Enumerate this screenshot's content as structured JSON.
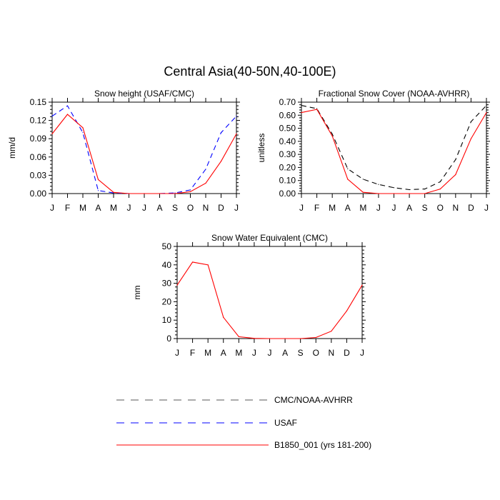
{
  "figure": {
    "title": "Central Asia(40-50N,40-100E)"
  },
  "legend": [
    {
      "name": "CMC/NOAA-AVHRR",
      "color": "#000000",
      "dash": "dashed"
    },
    {
      "name": "USAF",
      "color": "#0000ff",
      "dash": "dashed"
    },
    {
      "name": "B1850_001 (yrs 181-200)",
      "color": "#ff0000",
      "dash": "solid"
    }
  ],
  "chart_data": [
    {
      "type": "line",
      "title": "Snow height (USAF/CMC)",
      "ylabel": "mm/d",
      "xlabel": "",
      "categories": [
        "J",
        "F",
        "M",
        "A",
        "M",
        "J",
        "J",
        "A",
        "S",
        "O",
        "N",
        "D",
        "J"
      ],
      "ylim": [
        0,
        0.15
      ],
      "yticks": [
        "0.00",
        "0.03",
        "0.06",
        "0.09",
        "0.12",
        "0.15"
      ],
      "series": [
        {
          "name": "USAF",
          "color": "#0000ff",
          "dash": "dashed",
          "values": [
            0.127,
            0.144,
            0.1,
            0.005,
            0.001,
            0.0,
            0.0,
            0.0,
            0.001,
            0.006,
            0.04,
            0.1,
            0.127
          ]
        },
        {
          "name": "B1850_001 (yrs 181-200)",
          "color": "#ff0000",
          "dash": "solid",
          "values": [
            0.098,
            0.13,
            0.108,
            0.023,
            0.002,
            0.0,
            0.0,
            0.0,
            0.0,
            0.003,
            0.017,
            0.053,
            0.098
          ]
        }
      ]
    },
    {
      "type": "line",
      "title": "Fractional Snow Cover (NOAA-AVHRR)",
      "ylabel": "unitless",
      "xlabel": "",
      "categories": [
        "J",
        "F",
        "M",
        "A",
        "M",
        "J",
        "J",
        "A",
        "S",
        "O",
        "N",
        "D",
        "J"
      ],
      "ylim": [
        0,
        0.7
      ],
      "yticks": [
        "0.00",
        "0.10",
        "0.20",
        "0.30",
        "0.40",
        "0.50",
        "0.60",
        "0.70"
      ],
      "series": [
        {
          "name": "CMC/NOAA-AVHRR",
          "color": "#000000",
          "dash": "dashed",
          "values": [
            0.675,
            0.65,
            0.455,
            0.19,
            0.11,
            0.07,
            0.045,
            0.03,
            0.035,
            0.09,
            0.26,
            0.55,
            0.675
          ]
        },
        {
          "name": "B1850_001 (yrs 181-200)",
          "color": "#ff0000",
          "dash": "solid",
          "values": [
            0.62,
            0.645,
            0.44,
            0.11,
            0.01,
            0.0,
            0.0,
            0.0,
            0.0,
            0.035,
            0.145,
            0.42,
            0.62
          ]
        }
      ]
    },
    {
      "type": "line",
      "title": "Snow Water Equivalent (CMC)",
      "ylabel": "mm",
      "xlabel": "",
      "categories": [
        "J",
        "F",
        "M",
        "A",
        "M",
        "J",
        "J",
        "A",
        "S",
        "O",
        "N",
        "D",
        "J"
      ],
      "ylim": [
        0,
        50
      ],
      "yticks": [
        "0",
        "10",
        "20",
        "30",
        "40",
        "50"
      ],
      "series": [
        {
          "name": "B1850_001 (yrs 181-200)",
          "color": "#ff0000",
          "dash": "solid",
          "values": [
            29.0,
            41.5,
            40.0,
            11.5,
            1.0,
            0.1,
            0.0,
            0.0,
            0.0,
            0.6,
            4.0,
            15.0,
            29.0
          ]
        }
      ]
    }
  ]
}
